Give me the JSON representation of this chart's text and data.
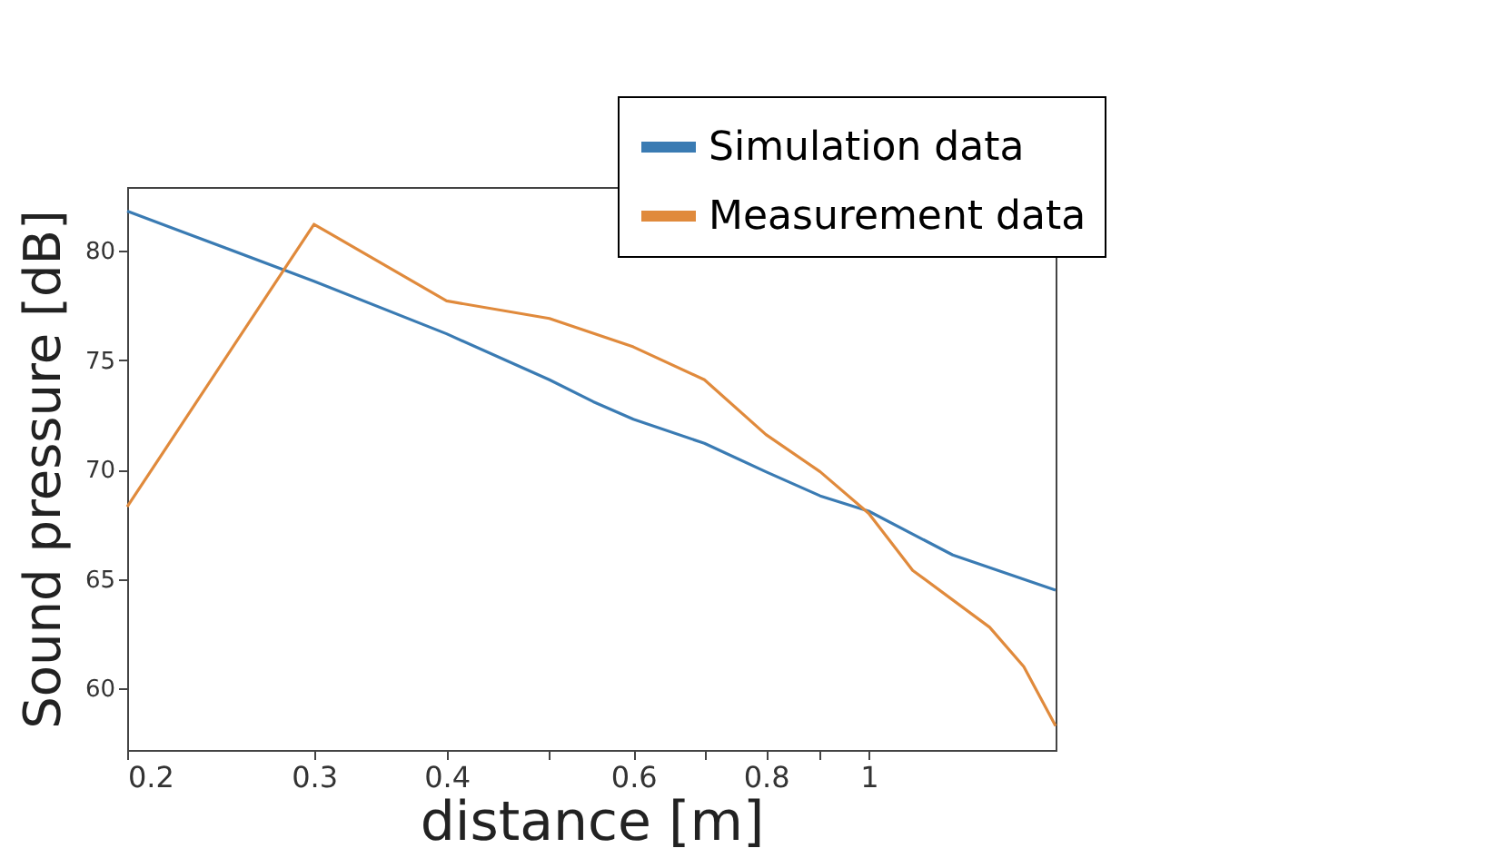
{
  "chart_data": {
    "type": "line",
    "xlabel": "distance [m]",
    "ylabel": "Sound pressure [dB]",
    "log": "x",
    "grid": false,
    "legend": "top right",
    "marker": "none",
    "line_style": "solid",
    "xlim": [
      0.2,
      1.5
    ],
    "xticks": [
      0.2,
      0.3,
      0.4,
      {
        "value": 0.5,
        "label": null
      },
      0.6,
      {
        "value": 0.7,
        "label": null
      },
      0.8,
      {
        "value": 0.9,
        "label": null
      },
      1
    ],
    "ylim": [
      57.2,
      82.9
    ],
    "yticks": [
      60,
      65,
      70,
      75,
      80
    ],
    "series": [
      {
        "name": "Simulation data",
        "color": "#3a7bb3",
        "x": [
          0.2,
          0.3,
          0.4,
          0.5,
          0.55,
          0.6,
          0.7,
          0.8,
          0.9,
          1.0,
          1.2,
          1.5
        ],
        "values": [
          81.8,
          78.6,
          76.2,
          74.1,
          73.1,
          72.3,
          71.2,
          69.9,
          68.8,
          68.1,
          66.1,
          64.5
        ]
      },
      {
        "name": "Measurement data",
        "color": "#e08a3c",
        "x": [
          0.2,
          0.3,
          0.4,
          0.5,
          0.6,
          0.7,
          0.8,
          0.9,
          1.0,
          1.1,
          1.3,
          1.4,
          1.5
        ],
        "values": [
          68.3,
          81.2,
          77.7,
          76.9,
          75.6,
          74.1,
          71.6,
          69.9,
          68.0,
          65.4,
          62.8,
          61.0,
          58.3
        ]
      }
    ]
  }
}
